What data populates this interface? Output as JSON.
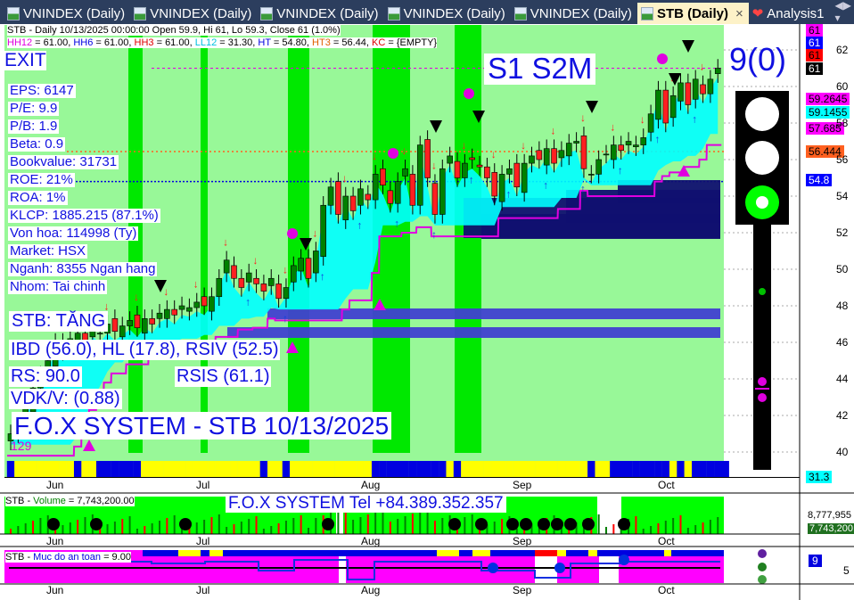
{
  "tabs": [
    {
      "label": "VNINDEX (Daily)"
    },
    {
      "label": "VNINDEX (Daily)"
    },
    {
      "label": "VNINDEX (Daily)"
    },
    {
      "label": "VNINDEX (Daily)"
    },
    {
      "label": "VNINDEX (Daily)"
    },
    {
      "label": "STB (Daily)",
      "active": true
    },
    {
      "label": "Analysis1"
    }
  ],
  "header": {
    "line1": "STB - Daily 10/13/2025 00:00:00 Open 59.9, Hi 61, Lo 59.3, Close 61 (1.0%)",
    "line2": [
      {
        "t": "HH12",
        "c": "#e000e0"
      },
      {
        "t": " = 61.00, ",
        "c": "#000"
      },
      {
        "t": "HH6",
        "c": "#0000e0"
      },
      {
        "t": " = 61.00, ",
        "c": "#000"
      },
      {
        "t": "HH3",
        "c": "#e00000"
      },
      {
        "t": " = 61.00, ",
        "c": "#000"
      },
      {
        "t": "LL12",
        "c": "#00c0e0"
      },
      {
        "t": " = 31.30, ",
        "c": "#000"
      },
      {
        "t": "HT",
        "c": "#0000e0"
      },
      {
        "t": "  = 54.80, ",
        "c": "#000"
      },
      {
        "t": "HT3",
        "c": "#e06000"
      },
      {
        "t": "  = 56.44, ",
        "c": "#000"
      },
      {
        "t": "KC",
        "c": "#e00000"
      },
      {
        "t": " = {EMPTY}",
        "c": "#000"
      }
    ]
  },
  "signal": "EXIT",
  "stages": "S1  S2M",
  "score": "9(0)",
  "fundamentals": [
    "EPS: 6147",
    "P/E: 9.9",
    "P/B: 1.9",
    "Beta: 0.9",
    "Bookvalue: 31731",
    "ROE: 21%",
    "ROA: 1%",
    "KLCP: 1885.215 (87.1%)",
    "Von hoa: 114998 (Ty)",
    "Market: HSX",
    "Nganh: 8355 Ngan hang",
    "Nhom: Tai chinh"
  ],
  "trend": "STB: TĂNG",
  "indicators": "IBD (56.0), HL (17.8), RSIV (52.5)",
  "rs": "RS: 90.0",
  "rsis": "RSIS (61.1)",
  "vdk": "VDK/V:  (0.88)",
  "title_banner": "F.O.X SYSTEM - STB 10/13/2025",
  "rs_line_label": "129",
  "traffic_light": {
    "red": "off",
    "yellow": "off",
    "green": "on"
  },
  "price_tags": [
    {
      "v": "61",
      "bg": "#ff00ff"
    },
    {
      "v": "61",
      "bg": "#0000ff",
      "fg": "#fff"
    },
    {
      "v": "61",
      "bg": "#ff0000"
    },
    {
      "v": "61",
      "bg": "#000",
      "fg": "#fff"
    },
    {
      "v": "59.2645",
      "bg": "#ff00ff"
    },
    {
      "v": "59.1455",
      "bg": "#00ffff"
    },
    {
      "v": "57.685",
      "bg": "#ff00ff"
    },
    {
      "v": "56.444",
      "bg": "#ff6020"
    },
    {
      "v": "54.8",
      "bg": "#0000ff",
      "fg": "#fff"
    },
    {
      "v": "31.3",
      "bg": "#00ffff"
    }
  ],
  "volume_panel": {
    "label_prefix": "STB - ",
    "label_name": "Volume",
    "label_value": " = 7,743,200.00",
    "banner": "F.O.X SYSTEM Tel +84.389.352.357",
    "axis": [
      "8,777,955",
      "7,743,200"
    ]
  },
  "safety_panel": {
    "label_prefix": "STB - ",
    "label_name": "Muc do an toan",
    "label_value": " = 9.00",
    "tag": "9",
    "axis": "5"
  },
  "months": [
    "Jun",
    "Jul",
    "Aug",
    "Sep",
    "Oct"
  ],
  "chart_data": {
    "type": "candlestick",
    "ylim": [
      39,
      63
    ],
    "yticks": [
      40,
      42,
      44,
      46,
      48,
      50,
      52,
      54,
      56,
      58,
      60,
      62
    ],
    "closes": [
      41.0,
      41.5,
      42.5,
      43.5,
      44.2,
      45.0,
      46.0,
      45.5,
      46.2,
      46.5,
      46.0,
      46.8,
      46.5,
      47.0,
      46.6,
      46.9,
      47.2,
      46.8,
      47.3,
      47.0,
      47.6,
      47.8,
      47.5,
      48.0,
      47.9,
      48.2,
      48.0,
      48.5,
      49.5,
      50.5,
      49.5,
      49.0,
      49.8,
      49.2,
      48.8,
      49.5,
      48.4,
      49.0,
      50.2,
      50.6,
      49.5,
      51.0,
      53.5,
      54.5,
      53.0,
      54.0,
      53.2,
      54.4,
      53.8,
      55.2,
      54.6,
      53.6,
      54.8,
      55.5,
      53.5,
      56.8,
      55.0,
      53.0,
      55.5,
      56.2,
      55.0,
      55.8,
      56.0,
      55.6,
      55.0,
      54.0,
      55.2,
      55.5,
      54.5,
      55.8,
      56.2,
      56.0,
      56.6,
      55.8,
      56.5,
      56.9,
      57.0,
      55.5,
      55.2,
      56.0,
      56.3,
      56.8,
      56.5,
      57.0,
      56.8,
      57.2,
      58.5,
      59.8,
      58.0,
      59.5,
      60.2,
      59.0,
      60.4,
      59.6,
      60.4,
      61.0
    ],
    "last": {
      "open": 59.9,
      "high": 61,
      "low": 59.3,
      "close": 61
    },
    "levels": {
      "HT": 54.8,
      "HT3": 56.44,
      "HH12": 61.0
    },
    "safety_strip": "BYYYYYYYYBYYBBBBBBYYYYYYYYYYYYYYYYBYYBYYYYYYYYYYYBBBBBBBBBBYBYYYYYYYYYYYYYYYYYBYYBBBBBBBBYBYBBBBB",
    "colors": {
      "bg": "#98f898",
      "band": "#00e800",
      "up": "#008000",
      "down": "#ff2020",
      "zone": "#101070"
    }
  }
}
